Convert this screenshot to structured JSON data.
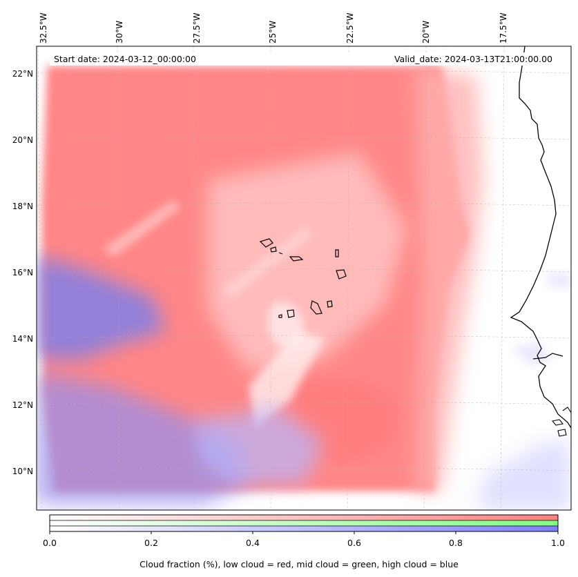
{
  "map": {
    "start_date": "Start date: 2024-03-12_00:00:00",
    "valid_date": "Valid_date: 2024-03-13T21:00:00.00",
    "longitude_labels": [
      "32.5°W",
      "30°W",
      "27.5°W",
      "25°W",
      "22.5°W",
      "20°W",
      "17.5°W"
    ],
    "latitude_labels": [
      "22°N",
      "20°N",
      "18°N",
      "16°N",
      "14°N",
      "12°N",
      "10°N"
    ],
    "layers": {
      "low_cloud_color": "#ff7f7f",
      "mid_cloud_color": "#7fff7f",
      "high_cloud_color": "#7f7fff",
      "coastline_color": "#000000"
    }
  },
  "colorbar": {
    "ticks": [
      "0.0",
      "0.2",
      "0.4",
      "0.6",
      "0.8",
      "1.0"
    ],
    "label": "Cloud fraction (%), low cloud = red, mid cloud = green, high cloud = blue"
  }
}
